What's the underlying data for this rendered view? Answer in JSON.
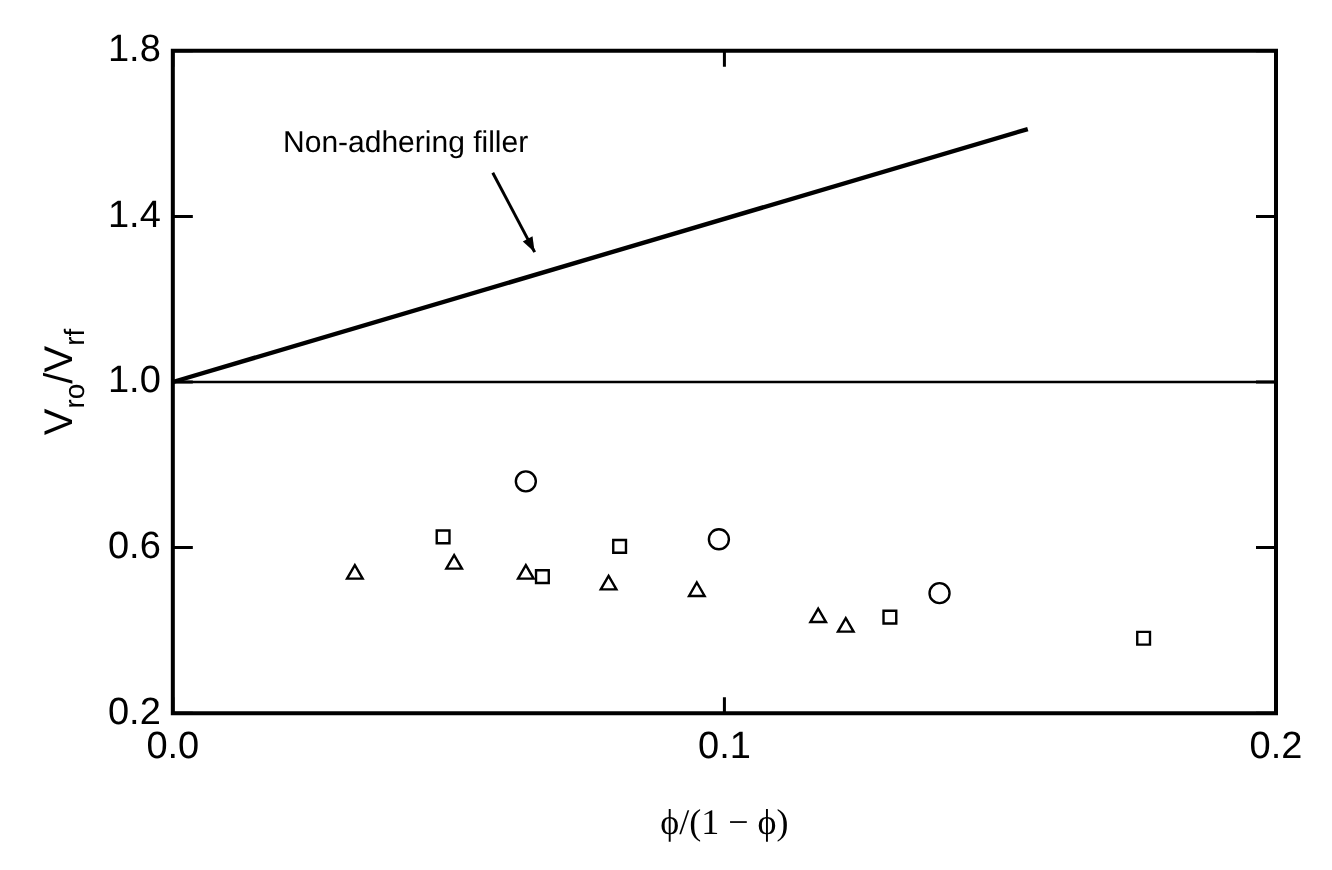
{
  "chart_data": {
    "type": "scatter",
    "xlabel": "ϕ/(1 − ϕ)",
    "ylabel": "V$_{ro}$/V$_{rf}$",
    "xlim": [
      0,
      0.2
    ],
    "xticks": [
      {
        "value": 0,
        "label": "0.0"
      },
      {
        "value": 0.1,
        "label": "0.1"
      },
      {
        "value": 0.2,
        "label": "0.2"
      }
    ],
    "ylim": [
      0.2,
      1.8
    ],
    "yticks": [
      {
        "value": 0.2,
        "label": "0.2"
      },
      {
        "value": 0.6,
        "label": "0.6"
      },
      {
        "value": 1.0,
        "label": "1.0"
      },
      {
        "value": 1.4,
        "label": "1.4"
      },
      {
        "value": 1.8,
        "label": "1.8"
      }
    ],
    "grid": false,
    "legend": false,
    "series": [
      {
        "type": "line",
        "marker": "none",
        "line_style": "solid",
        "color": "#000000",
        "x": [
          0,
          0.155
        ],
        "values": [
          1.0,
          1.611
        ]
      },
      {
        "marker": "triangle",
        "color": "#000000",
        "x": [
          0.033,
          0.051,
          0.064,
          0.079,
          0.095,
          0.117,
          0.122
        ],
        "values": [
          0.536,
          0.56,
          0.536,
          0.51,
          0.494,
          0.431,
          0.408
        ]
      },
      {
        "marker": "square",
        "color": "#000000",
        "x": [
          0.049,
          0.067,
          0.081,
          0.13,
          0.176
        ],
        "values": [
          0.626,
          0.53,
          0.603,
          0.432,
          0.381
        ]
      },
      {
        "marker": "circle",
        "color": "#000000",
        "x": [
          0.064,
          0.099,
          0.139
        ],
        "values": [
          0.76,
          0.62,
          0.49
        ]
      }
    ],
    "ref_lines": [
      {
        "axis": "y",
        "value": 1.0,
        "color": "#000000",
        "line_style": "solid"
      }
    ],
    "annotations": [
      "Non-adhering filler"
    ]
  }
}
